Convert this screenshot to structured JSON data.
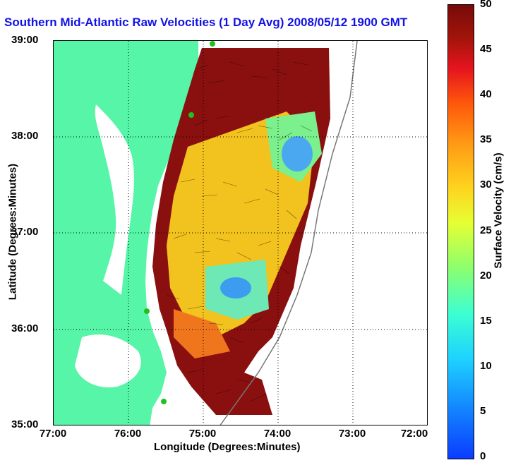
{
  "title": "Southern Mid-Atlantic Raw Velocities (1 Day Avg) 2008/05/12 1900 GMT",
  "xlabel": "Longitude (Degrees:Minutes)",
  "ylabel": "Latitude (Degrees:Minutes)",
  "x_ticks": [
    "77:00",
    "76:00",
    "75:00",
    "74:00",
    "73:00",
    "72:00"
  ],
  "y_ticks": [
    "39:00",
    "38:00",
    "37:00",
    "36:00",
    "35:00"
  ],
  "colorbar": {
    "label": "Surface Velocity (cm/s)",
    "ticks": [
      "50",
      "45",
      "40",
      "35",
      "30",
      "25",
      "20",
      "15",
      "10",
      "5",
      "0"
    ],
    "range": [
      0,
      50
    ]
  },
  "colors": {
    "land": "#56f5a8",
    "title": "#1212e6",
    "grid": "#000000"
  },
  "map": {
    "lon_range": [
      -77.0,
      -72.0
    ],
    "lat_range": [
      35.0,
      39.0
    ],
    "grid": "dotted",
    "land_label_visible": false
  }
}
